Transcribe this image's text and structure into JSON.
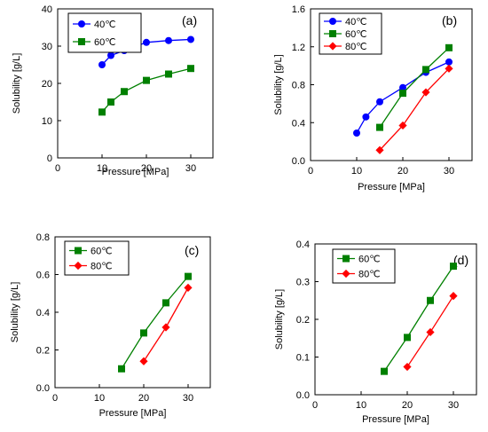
{
  "chart_data": [
    {
      "type": "line",
      "panel_label": "(a)",
      "xlabel": "Pressure [MPa]",
      "ylabel": "Solubility [g/L]",
      "xlim": [
        0,
        35
      ],
      "ylim": [
        0,
        40
      ],
      "xticks": [
        0,
        10,
        20,
        30
      ],
      "yticks": [
        0,
        10,
        20,
        30,
        40
      ],
      "xtick_labels": [
        "0",
        "10",
        "20",
        "30"
      ],
      "ytick_labels": [
        "0",
        "10",
        "20",
        "30",
        "40"
      ],
      "legend_position": "top-left",
      "grid": false,
      "series": [
        {
          "name": "40℃",
          "marker": "circle",
          "color": "#0000ff",
          "x": [
            10,
            12,
            15,
            20,
            25,
            30
          ],
          "y": [
            25.0,
            27.5,
            28.8,
            31.0,
            31.5,
            31.8
          ]
        },
        {
          "name": "60℃",
          "marker": "square",
          "color": "#008000",
          "x": [
            10,
            12,
            15,
            20,
            25,
            30
          ],
          "y": [
            12.3,
            15.0,
            17.8,
            20.8,
            22.5,
            24.0
          ]
        }
      ]
    },
    {
      "type": "line",
      "panel_label": "(b)",
      "xlabel": "Pressure [MPa]",
      "ylabel": "Solubility [g/L]",
      "xlim": [
        0,
        35
      ],
      "ylim": [
        0,
        1.6
      ],
      "xticks": [
        0,
        10,
        20,
        30
      ],
      "yticks": [
        0,
        0.4,
        0.8,
        1.2,
        1.6
      ],
      "xtick_labels": [
        "0",
        "10",
        "20",
        "30"
      ],
      "ytick_labels": [
        "0.0",
        "0.4",
        "0.8",
        "1.2",
        "1.6"
      ],
      "legend_position": "top-left",
      "grid": false,
      "series": [
        {
          "name": "40℃",
          "marker": "circle",
          "color": "#0000ff",
          "x": [
            10,
            12,
            15,
            20,
            25,
            30
          ],
          "y": [
            0.29,
            0.46,
            0.62,
            0.77,
            0.93,
            1.04
          ]
        },
        {
          "name": "60℃",
          "marker": "square",
          "color": "#008000",
          "x": [
            15,
            20,
            25,
            30
          ],
          "y": [
            0.35,
            0.71,
            0.96,
            1.19
          ]
        },
        {
          "name": "80℃",
          "marker": "diamond",
          "color": "#ff0000",
          "x": [
            15,
            20,
            25,
            30
          ],
          "y": [
            0.11,
            0.37,
            0.72,
            0.97
          ]
        }
      ]
    },
    {
      "type": "line",
      "panel_label": "(c)",
      "xlabel": "Pressure [MPa]",
      "ylabel": "Solubility [g/L]",
      "xlim": [
        0,
        35
      ],
      "ylim": [
        0,
        0.8
      ],
      "xticks": [
        0,
        10,
        20,
        30
      ],
      "yticks": [
        0,
        0.2,
        0.4,
        0.6,
        0.8
      ],
      "xtick_labels": [
        "0",
        "10",
        "20",
        "30"
      ],
      "ytick_labels": [
        "0.0",
        "0.2",
        "0.4",
        "0.6",
        "0.8"
      ],
      "legend_position": "top-left",
      "grid": false,
      "series": [
        {
          "name": "60℃",
          "marker": "square",
          "color": "#008000",
          "x": [
            15,
            20,
            25,
            30
          ],
          "y": [
            0.1,
            0.29,
            0.45,
            0.59
          ]
        },
        {
          "name": "80℃",
          "marker": "diamond",
          "color": "#ff0000",
          "x": [
            20,
            25,
            30
          ],
          "y": [
            0.14,
            0.32,
            0.53
          ]
        }
      ]
    },
    {
      "type": "line",
      "panel_label": "(d)",
      "xlabel": "Pressure [MPa]",
      "ylabel": "Solubility [g/L]",
      "xlim": [
        0,
        35
      ],
      "ylim": [
        0,
        0.4
      ],
      "xticks": [
        0,
        10,
        20,
        30
      ],
      "yticks": [
        0,
        0.1,
        0.2,
        0.3,
        0.4
      ],
      "xtick_labels": [
        "0",
        "10",
        "20",
        "30"
      ],
      "ytick_labels": [
        "0.0",
        "0.1",
        "0.2",
        "0.3",
        "0.4"
      ],
      "legend_position": "top-left",
      "grid": false,
      "series": [
        {
          "name": "60℃",
          "marker": "square",
          "color": "#008000",
          "x": [
            15,
            20,
            25,
            30
          ],
          "y": [
            0.062,
            0.152,
            0.25,
            0.341
          ]
        },
        {
          "name": "80℃",
          "marker": "diamond",
          "color": "#ff0000",
          "x": [
            20,
            25,
            30
          ],
          "y": [
            0.074,
            0.166,
            0.262
          ]
        }
      ]
    }
  ]
}
